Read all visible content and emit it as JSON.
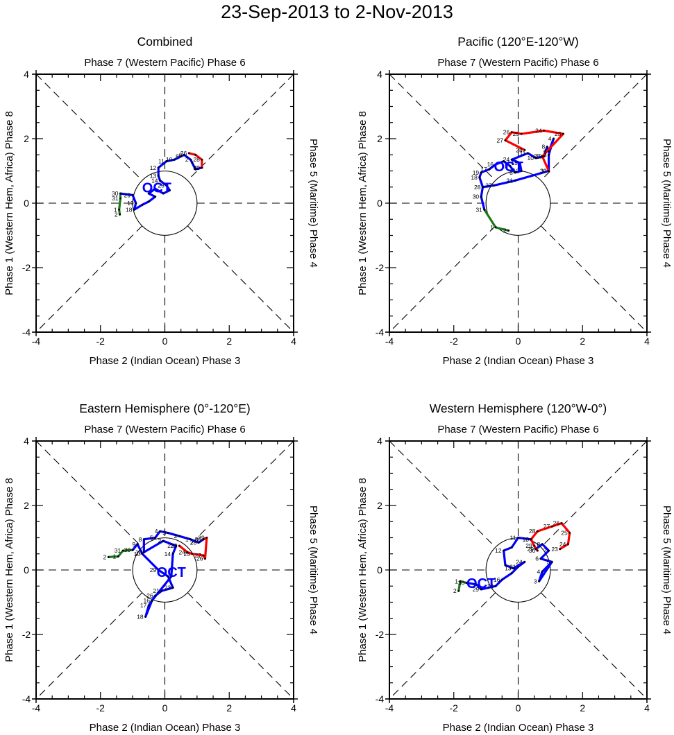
{
  "title": "23-Sep-2013 to 2-Nov-2013",
  "chart_data": [
    {
      "type": "line",
      "title": "Combined",
      "top_label": "Phase 7 (Western Pacific) Phase 6",
      "bottom_label": "Phase 2 (Indian Ocean) Phase 3",
      "left_label": "Phase 1 (Western Hem, Africa) Phase 8",
      "right_label": "Phase 5 (Maritime) Phase 4",
      "xlim": [
        -4,
        4
      ],
      "ylim": [
        -4,
        4
      ],
      "x_ticks": [
        "-4",
        "-2",
        "0",
        "2",
        "4"
      ],
      "y_ticks": [
        "-4",
        "-2",
        "0",
        "2",
        "4"
      ],
      "month_label": {
        "text": "OCT",
        "x": -0.25,
        "y": 0.45
      },
      "series": [
        {
          "name": "Sep",
          "color": "#1a7a1a",
          "points": [
            {
              "x": -1.4,
              "y": -0.35,
              "label": "2"
            },
            {
              "x": -1.42,
              "y": -0.2,
              "label": "1"
            },
            {
              "x": -1.38,
              "y": 0.15,
              "label": "31"
            },
            {
              "x": -1.38,
              "y": 0.3,
              "label": "30"
            }
          ]
        },
        {
          "name": "Oct",
          "color": "#0000ff",
          "points": [
            {
              "x": -1.38,
              "y": 0.3,
              "label": ""
            },
            {
              "x": -1.0,
              "y": 0.25,
              "label": "29"
            },
            {
              "x": -0.9,
              "y": 0.0,
              "label": "19"
            },
            {
              "x": -0.95,
              "y": -0.2,
              "label": "18"
            },
            {
              "x": -0.7,
              "y": -0.05,
              "label": ""
            },
            {
              "x": -0.5,
              "y": 0.05,
              "label": ""
            },
            {
              "x": -0.3,
              "y": 0.2,
              "label": ""
            },
            {
              "x": -0.5,
              "y": 0.3,
              "label": ""
            },
            {
              "x": -0.3,
              "y": 0.45,
              "label": ""
            },
            {
              "x": -0.05,
              "y": 0.3,
              "label": ""
            },
            {
              "x": 0.15,
              "y": 0.4,
              "label": ""
            },
            {
              "x": 0.05,
              "y": 0.55,
              "label": "23"
            },
            {
              "x": -0.15,
              "y": 0.7,
              "label": "14"
            },
            {
              "x": -0.2,
              "y": 0.85,
              "label": "13"
            },
            {
              "x": -0.2,
              "y": 1.1,
              "label": "12"
            },
            {
              "x": 0.05,
              "y": 1.3,
              "label": "11"
            },
            {
              "x": 0.3,
              "y": 1.35,
              "label": "10"
            },
            {
              "x": 0.5,
              "y": 1.45,
              "label": "8"
            },
            {
              "x": 0.6,
              "y": 1.5,
              "label": "6"
            },
            {
              "x": 0.8,
              "y": 1.35,
              "label": "2"
            },
            {
              "x": 0.85,
              "y": 1.25,
              "label": ""
            },
            {
              "x": 0.95,
              "y": 1.05,
              "label": ""
            },
            {
              "x": 1.15,
              "y": 1.1,
              "label": "30"
            }
          ]
        },
        {
          "name": "Nov",
          "color": "#ff0000",
          "points": [
            {
              "x": 0.75,
              "y": 1.55,
              "label": "26"
            },
            {
              "x": 0.95,
              "y": 1.5,
              "label": ""
            },
            {
              "x": 1.15,
              "y": 1.35,
              "label": "28"
            },
            {
              "x": 1.15,
              "y": 1.1,
              "label": "30"
            }
          ]
        }
      ]
    },
    {
      "type": "line",
      "title": "Pacific (120°E-120°W)",
      "top_label": "Phase 7 (Western Pacific) Phase 6",
      "bottom_label": "Phase 2 (Indian Ocean) Phase 3",
      "left_label": "Phase 1 (Western Hem, Africa) Phase 8",
      "right_label": "Phase 5 (Maritime) Phase 4",
      "xlim": [
        -4,
        4
      ],
      "ylim": [
        -4,
        4
      ],
      "x_ticks": [
        "-4",
        "-2",
        "0",
        "2",
        "4"
      ],
      "y_ticks": [
        "-4",
        "-2",
        "0",
        "2",
        "4"
      ],
      "month_label": {
        "text": "OCT",
        "x": -0.3,
        "y": 1.1
      },
      "series": [
        {
          "name": "Sep",
          "color": "#1a7a1a",
          "points": [
            {
              "x": -0.3,
              "y": -0.85,
              "label": "2"
            },
            {
              "x": -0.7,
              "y": -0.75,
              "label": "1"
            },
            {
              "x": -1.05,
              "y": -0.2,
              "label": "31"
            }
          ]
        },
        {
          "name": "Oct",
          "color": "#0000ff",
          "points": [
            {
              "x": -1.05,
              "y": -0.2,
              "label": ""
            },
            {
              "x": -1.15,
              "y": 0.2,
              "label": "30"
            },
            {
              "x": -1.1,
              "y": 0.5,
              "label": "28"
            },
            {
              "x": -1.2,
              "y": 0.8,
              "label": "18"
            },
            {
              "x": -1.15,
              "y": 0.95,
              "label": "19"
            },
            {
              "x": -0.9,
              "y": 1.05,
              "label": "17"
            },
            {
              "x": -0.7,
              "y": 1.2,
              "label": "16"
            },
            {
              "x": -0.45,
              "y": 1.3,
              "label": ""
            },
            {
              "x": -0.25,
              "y": 1.15,
              "label": "15"
            },
            {
              "x": -0.1,
              "y": 0.95,
              "label": "8"
            },
            {
              "x": 0.1,
              "y": 1.0,
              "label": "12"
            },
            {
              "x": 0.05,
              "y": 1.25,
              "label": "13"
            },
            {
              "x": -0.2,
              "y": 1.35,
              "label": "24"
            },
            {
              "x": 0.3,
              "y": 1.55,
              "label": "11"
            },
            {
              "x": 0.55,
              "y": 1.4,
              "label": "10"
            },
            {
              "x": 0.8,
              "y": 1.45,
              "label": "22"
            },
            {
              "x": 0.9,
              "y": 1.75,
              "label": "8"
            },
            {
              "x": 0.95,
              "y": 1.6,
              "label": "6"
            },
            {
              "x": 1.1,
              "y": 2.0,
              "label": "4"
            },
            {
              "x": 0.95,
              "y": 1.5,
              "label": "3"
            },
            {
              "x": 0.95,
              "y": 1.0,
              "label": "30"
            },
            {
              "x": -0.1,
              "y": 0.7,
              "label": "21"
            },
            {
              "x": -0.75,
              "y": 0.55,
              "label": "27"
            },
            {
              "x": -1.1,
              "y": 0.5,
              "label": ""
            }
          ]
        },
        {
          "name": "Nov",
          "color": "#ff0000",
          "points": [
            {
              "x": 0.2,
              "y": 1.65,
              "label": "28"
            },
            {
              "x": -0.4,
              "y": 1.95,
              "label": "27"
            },
            {
              "x": -0.2,
              "y": 2.2,
              "label": "26"
            },
            {
              "x": 0.1,
              "y": 2.15,
              "label": "25"
            },
            {
              "x": 0.8,
              "y": 2.25,
              "label": "24"
            },
            {
              "x": 1.4,
              "y": 2.15,
              "label": "23"
            },
            {
              "x": 0.75,
              "y": 1.45,
              "label": "22"
            },
            {
              "x": 0.95,
              "y": 1.0,
              "label": "30"
            }
          ]
        }
      ]
    },
    {
      "type": "line",
      "title": "Eastern Hemisphere (0°-120°E)",
      "top_label": "Phase 7 (Western Pacific) Phase 6",
      "bottom_label": "Phase 2 (Indian Ocean) Phase 3",
      "left_label": "Phase 1 (Western Hem, Africa) Phase 8",
      "right_label": "Phase 5 (Maritime) Phase 4",
      "xlim": [
        -4,
        4
      ],
      "ylim": [
        -4,
        4
      ],
      "x_ticks": [
        "-4",
        "-2",
        "0",
        "2",
        "4"
      ],
      "y_ticks": [
        "-4",
        "-2",
        "0",
        "2",
        "4"
      ],
      "month_label": {
        "text": "OCT",
        "x": 0.2,
        "y": -0.1
      },
      "series": [
        {
          "name": "Sep",
          "color": "#1a7a1a",
          "points": [
            {
              "x": -1.75,
              "y": 0.4,
              "label": "2"
            },
            {
              "x": -1.45,
              "y": 0.42,
              "label": "1"
            },
            {
              "x": -1.3,
              "y": 0.6,
              "label": "31"
            },
            {
              "x": -1.0,
              "y": 0.62,
              "label": "30"
            }
          ]
        },
        {
          "name": "Oct",
          "color": "#0000ff",
          "points": [
            {
              "x": -1.0,
              "y": 0.62,
              "label": ""
            },
            {
              "x": -0.85,
              "y": 0.8,
              "label": "9"
            },
            {
              "x": -0.7,
              "y": 0.5,
              "label": "10"
            },
            {
              "x": -0.2,
              "y": 0.0,
              "label": "29"
            },
            {
              "x": 0.1,
              "y": -0.2,
              "label": ""
            },
            {
              "x": 0.25,
              "y": -0.55,
              "label": "23"
            },
            {
              "x": -0.1,
              "y": -0.65,
              "label": "21"
            },
            {
              "x": -0.3,
              "y": -0.8,
              "label": "26"
            },
            {
              "x": -0.4,
              "y": -0.95,
              "label": "16"
            },
            {
              "x": -0.5,
              "y": -1.1,
              "label": "17"
            },
            {
              "x": -0.6,
              "y": -1.45,
              "label": "18"
            },
            {
              "x": -0.4,
              "y": -0.95,
              "label": ""
            },
            {
              "x": 0.2,
              "y": -0.2,
              "label": ""
            },
            {
              "x": 0.25,
              "y": 0.5,
              "label": "14"
            },
            {
              "x": 0.35,
              "y": 0.75,
              "label": "23"
            },
            {
              "x": -0.05,
              "y": 0.9,
              "label": "2"
            },
            {
              "x": -0.65,
              "y": 0.55,
              "label": "10"
            },
            {
              "x": -0.65,
              "y": 0.95,
              "label": "8"
            },
            {
              "x": -0.3,
              "y": 1.0,
              "label": "5"
            },
            {
              "x": -0.15,
              "y": 1.2,
              "label": "4"
            },
            {
              "x": 0.1,
              "y": 1.15,
              "label": "3"
            },
            {
              "x": 0.45,
              "y": 1.05,
              "label": "2"
            },
            {
              "x": 0.8,
              "y": 0.95,
              "label": "1"
            },
            {
              "x": 1.05,
              "y": 0.85,
              "label": "28"
            },
            {
              "x": 1.2,
              "y": 0.95,
              "label": "30"
            }
          ]
        },
        {
          "name": "Nov",
          "color": "#ff0000",
          "points": [
            {
              "x": 0.45,
              "y": 0.75,
              "label": "23"
            },
            {
              "x": 0.7,
              "y": 0.55,
              "label": "24"
            },
            {
              "x": 0.85,
              "y": 0.5,
              "label": "25"
            },
            {
              "x": 1.2,
              "y": 0.45,
              "label": "27"
            },
            {
              "x": 1.25,
              "y": 0.35,
              "label": "26"
            },
            {
              "x": 1.3,
              "y": 1.0,
              "label": "29"
            },
            {
              "x": 1.2,
              "y": 0.95,
              "label": "30"
            }
          ]
        }
      ]
    },
    {
      "type": "line",
      "title": "Western Hemisphere (120°W-0°)",
      "top_label": "Phase 7 (Western Pacific) Phase 6",
      "bottom_label": "Phase 2 (Indian Ocean) Phase 3",
      "left_label": "Phase 1 (Western Hem, Africa) Phase 8",
      "right_label": "Phase 5 (Maritime) Phase 4",
      "xlim": [
        -4,
        4
      ],
      "ylim": [
        -4,
        4
      ],
      "x_ticks": [
        "-4",
        "-2",
        "0",
        "2",
        "4"
      ],
      "y_ticks": [
        "-4",
        "-2",
        "0",
        "2",
        "4"
      ],
      "month_label": {
        "text": "OCT",
        "x": -1.15,
        "y": -0.45
      },
      "series": [
        {
          "name": "Sep",
          "color": "#1a7a1a",
          "points": [
            {
              "x": -1.85,
              "y": -0.65,
              "label": "2"
            },
            {
              "x": -1.8,
              "y": -0.35,
              "label": "1"
            },
            {
              "x": -1.6,
              "y": -0.4,
              "label": "30"
            }
          ]
        },
        {
          "name": "Oct",
          "color": "#0000ff",
          "points": [
            {
              "x": -1.6,
              "y": -0.4,
              "label": ""
            },
            {
              "x": -1.3,
              "y": -0.45,
              "label": ""
            },
            {
              "x": -1.15,
              "y": -0.6,
              "label": "29"
            },
            {
              "x": -0.7,
              "y": -0.5,
              "label": "18"
            },
            {
              "x": -0.5,
              "y": -0.3,
              "label": "16"
            },
            {
              "x": -0.2,
              "y": -0.1,
              "label": ""
            },
            {
              "x": 0.0,
              "y": 0.1,
              "label": "21"
            },
            {
              "x": 0.2,
              "y": 0.25,
              "label": "24"
            },
            {
              "x": -0.15,
              "y": 0.05,
              "label": "13"
            },
            {
              "x": -0.4,
              "y": 0.15,
              "label": ""
            },
            {
              "x": -0.45,
              "y": 0.6,
              "label": "12"
            },
            {
              "x": -0.2,
              "y": 0.7,
              "label": ""
            },
            {
              "x": 0.0,
              "y": 1.0,
              "label": "11"
            },
            {
              "x": 0.4,
              "y": 0.95,
              "label": "10"
            },
            {
              "x": 0.55,
              "y": 0.65,
              "label": "29"
            },
            {
              "x": 0.75,
              "y": 0.8,
              "label": "8"
            },
            {
              "x": 0.95,
              "y": 0.6,
              "label": "7"
            },
            {
              "x": 0.7,
              "y": 0.35,
              "label": "6"
            },
            {
              "x": 1.05,
              "y": 0.25,
              "label": "5"
            },
            {
              "x": 0.65,
              "y": -0.35,
              "label": "3"
            },
            {
              "x": 0.75,
              "y": -0.05,
              "label": "4"
            },
            {
              "x": 1.05,
              "y": 0.25,
              "label": ""
            }
          ]
        },
        {
          "name": "Nov",
          "color": "#ff0000",
          "points": [
            {
              "x": 0.6,
              "y": 0.6,
              "label": "30"
            },
            {
              "x": 0.5,
              "y": 0.75,
              "label": "29"
            },
            {
              "x": 0.4,
              "y": 0.95,
              "label": "10"
            },
            {
              "x": 0.6,
              "y": 1.2,
              "label": "28"
            },
            {
              "x": 1.05,
              "y": 1.35,
              "label": "27"
            },
            {
              "x": 1.35,
              "y": 1.45,
              "label": "26"
            },
            {
              "x": 1.6,
              "y": 1.15,
              "label": "25"
            },
            {
              "x": 1.55,
              "y": 0.8,
              "label": "24"
            },
            {
              "x": 1.3,
              "y": 0.65,
              "label": "23"
            }
          ]
        }
      ]
    }
  ]
}
